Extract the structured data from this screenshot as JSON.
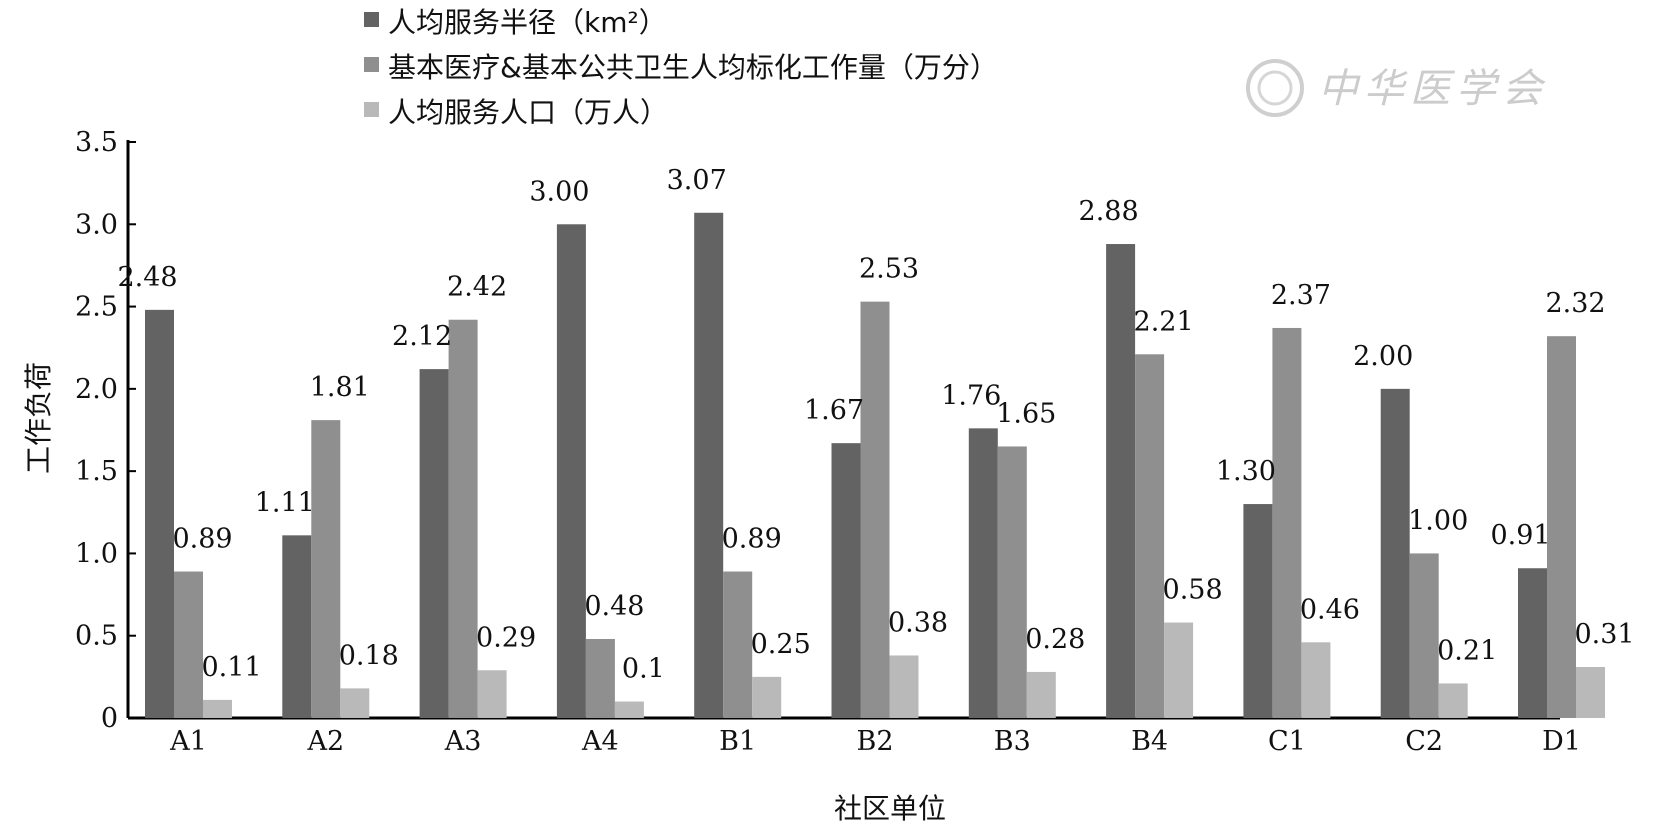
{
  "watermark": "中华医学会",
  "chart_data": {
    "type": "bar",
    "xlabel": "社区单位",
    "ylabel": "工作负荷",
    "ylim": [
      0,
      3.5
    ],
    "yticks": [
      "0",
      "0.5",
      "1.0",
      "1.5",
      "2.0",
      "2.5",
      "3.0",
      "3.5"
    ],
    "categories": [
      "A1",
      "A2",
      "A3",
      "A4",
      "B1",
      "B2",
      "B3",
      "B4",
      "C1",
      "C2",
      "D1"
    ],
    "legend_position": "top",
    "series": [
      {
        "name": "人均服务半径（km²）",
        "color": "#636363",
        "values": [
          2.48,
          1.11,
          2.12,
          3.0,
          3.07,
          1.67,
          1.76,
          2.88,
          1.3,
          2.0,
          0.91
        ],
        "labels": [
          "2.48",
          "1.11",
          "2.12",
          "3.00",
          "3.07",
          "1.67",
          "1.76",
          "2.88",
          "1.30",
          "2.00",
          "0.91"
        ]
      },
      {
        "name": "基本医疗&基本公共卫生人均标化工作量（万分）",
        "color": "#8f8f8f",
        "values": [
          0.89,
          1.81,
          2.42,
          0.48,
          0.89,
          2.53,
          1.65,
          2.21,
          2.37,
          1.0,
          2.32
        ],
        "labels": [
          "0.89",
          "1.81",
          "2.42",
          "0.48",
          "0.89",
          "2.53",
          "1.65",
          "2.21",
          "2.37",
          "1.00",
          "2.32"
        ]
      },
      {
        "name": "人均服务人口（万人）",
        "color": "#b9b9b9",
        "values": [
          0.11,
          0.18,
          0.29,
          0.1,
          0.25,
          0.38,
          0.28,
          0.58,
          0.46,
          0.21,
          0.31
        ],
        "labels": [
          "0.11",
          "0.18",
          "0.29",
          "0.1",
          "0.25",
          "0.38",
          "0.28",
          "0.58",
          "0.46",
          "0.21",
          "0.31"
        ]
      }
    ]
  }
}
